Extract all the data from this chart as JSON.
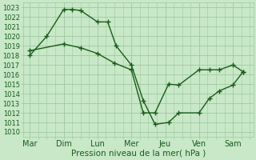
{
  "title": "Pression niveau de la mer( hPa )",
  "bg_color": "#c8e8c8",
  "grid_color": "#a0c8a0",
  "line_color": "#1a5c1a",
  "xlabels": [
    "Mar",
    "Dim",
    "Lun",
    "Mer",
    "Jeu",
    "Ven",
    "Sam"
  ],
  "x_day_ticks": [
    0,
    1,
    2,
    3,
    4,
    5,
    6
  ],
  "ylim": [
    1009.5,
    1023.5
  ],
  "yticks": [
    1010,
    1011,
    1012,
    1013,
    1014,
    1015,
    1016,
    1017,
    1018,
    1019,
    1020,
    1021,
    1022,
    1023
  ],
  "line1_x": [
    0.0,
    0.5,
    1.0,
    1.25,
    1.5,
    2.0,
    2.3,
    2.55,
    3.0,
    3.35,
    3.7,
    4.1,
    4.4,
    5.0,
    5.3,
    5.6,
    6.0,
    6.3
  ],
  "line1_y": [
    1018.0,
    1020.0,
    1022.8,
    1022.8,
    1022.7,
    1021.5,
    1021.5,
    1019.0,
    1017.0,
    1013.3,
    1010.8,
    1011.0,
    1012.0,
    1012.0,
    1013.5,
    1014.3,
    1014.9,
    1016.3
  ],
  "line2_x": [
    0.0,
    1.0,
    1.5,
    2.0,
    2.5,
    3.0,
    3.35,
    3.7,
    4.1,
    4.4,
    5.0,
    5.3,
    5.6,
    6.0,
    6.3
  ],
  "line2_y": [
    1018.5,
    1019.2,
    1018.8,
    1018.2,
    1017.2,
    1016.5,
    1012.0,
    1012.0,
    1015.0,
    1014.9,
    1016.5,
    1016.5,
    1016.5,
    1017.0,
    1016.3
  ],
  "xlabel_fontsize": 7.0,
  "ylabel_fontsize": 6.0,
  "title_fontsize": 7.5
}
